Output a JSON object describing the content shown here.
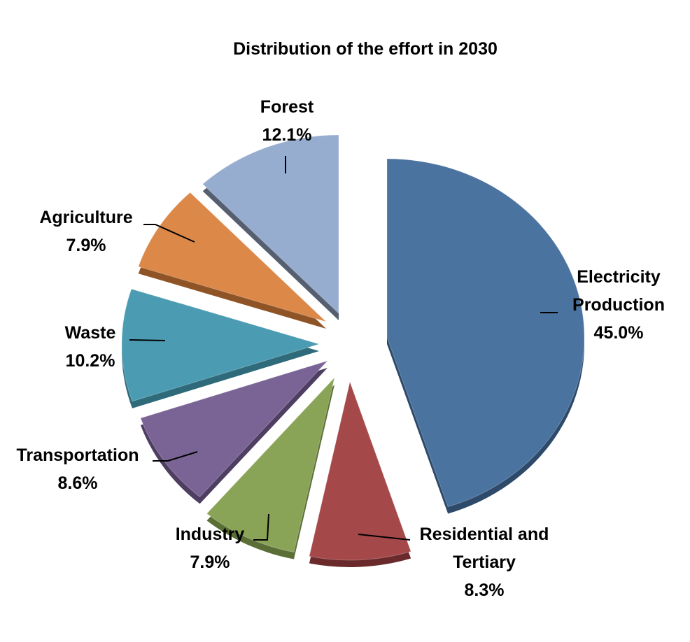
{
  "chart_data": {
    "type": "pie",
    "title": "Distribution of the effort in 2030",
    "slices": [
      {
        "label": [
          "Electricity",
          "Production"
        ],
        "value_label": "45.0%",
        "value": 45.0,
        "color": "#4A73A0",
        "side": "#2E4A6B"
      },
      {
        "label": [
          "Residential and",
          "Tertiary"
        ],
        "value_label": "8.3%",
        "value": 8.3,
        "color": "#A5484A",
        "side": "#6A2A2B"
      },
      {
        "label": [
          "Industry"
        ],
        "value_label": "7.9%",
        "value": 7.9,
        "color": "#89A456",
        "side": "#5A6E35"
      },
      {
        "label": [
          "Transportation"
        ],
        "value_label": "8.6%",
        "value": 8.6,
        "color": "#7A6495",
        "side": "#4E3E62"
      },
      {
        "label": [
          "Waste"
        ],
        "value_label": "10.2%",
        "value": 10.2,
        "color": "#4B9CB2",
        "side": "#2E6A7A"
      },
      {
        "label": [
          "Agriculture"
        ],
        "value_label": "7.9%",
        "value": 7.9,
        "color": "#DB8849",
        "side": "#8E5426"
      },
      {
        "label": [
          "Forest"
        ],
        "value_label": "12.1%",
        "value": 12.1,
        "color": "#97ADCF",
        "side": "#555F70"
      }
    ],
    "legend": "none",
    "style": "exploded-3d"
  }
}
